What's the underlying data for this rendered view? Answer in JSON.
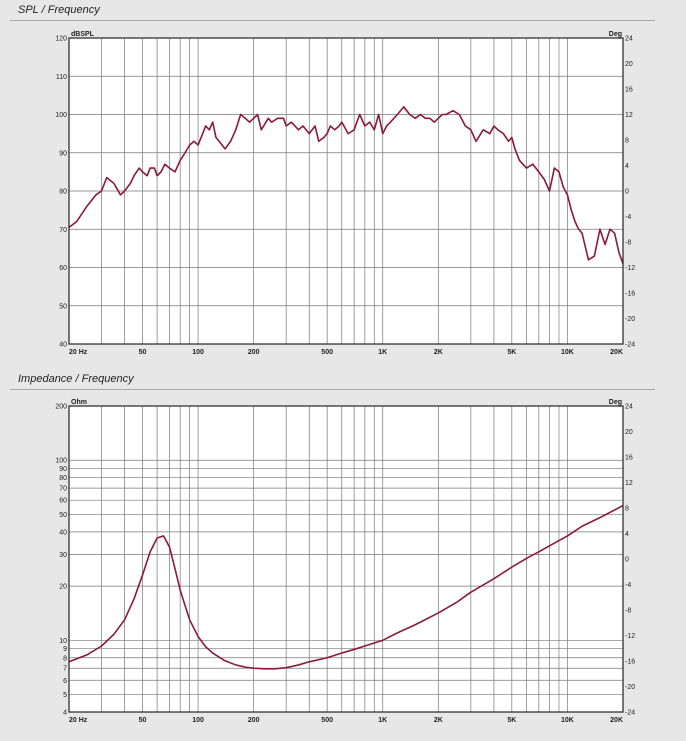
{
  "colors": {
    "background": "#e7e7e7",
    "plot_bg": "#ffffff",
    "grid": "#777777",
    "curve": "#8b1a3a",
    "highlight_tick": "#2a3fae"
  },
  "chart_data": [
    {
      "type": "line",
      "title": "SPL / Frequency",
      "ylabel": "dBSPL",
      "y2label": "Deg",
      "xscale": "log",
      "xlim": [
        20,
        20000
      ],
      "ylim": [
        40,
        120
      ],
      "y2lim": [
        -24,
        24
      ],
      "grid": true,
      "x_tick_labels": [
        {
          "v": 20,
          "t": "20 Hz"
        },
        {
          "v": 50,
          "t": "50"
        },
        {
          "v": 100,
          "t": "100"
        },
        {
          "v": 200,
          "t": "200"
        },
        {
          "v": 500,
          "t": "500"
        },
        {
          "v": 1000,
          "t": "1K"
        },
        {
          "v": 2000,
          "t": "2K"
        },
        {
          "v": 5000,
          "t": "5K"
        },
        {
          "v": 10000,
          "t": "10K"
        },
        {
          "v": 20000,
          "t": "20K"
        }
      ],
      "y_tick_labels": [
        {
          "v": 120,
          "t": "120"
        },
        {
          "v": 110,
          "t": "110"
        },
        {
          "v": 100,
          "t": "100"
        },
        {
          "v": 90,
          "t": "90"
        },
        {
          "v": 80,
          "t": "80"
        },
        {
          "v": 70,
          "t": "70"
        },
        {
          "v": 60,
          "t": "60"
        },
        {
          "v": 50,
          "t": "50"
        },
        {
          "v": 40,
          "t": "40"
        }
      ],
      "y2_tick_labels": [
        {
          "v": 24,
          "t": "24"
        },
        {
          "v": 20,
          "t": "20"
        },
        {
          "v": 16,
          "t": "16"
        },
        {
          "v": 12,
          "t": "12"
        },
        {
          "v": 8,
          "t": "8"
        },
        {
          "v": 4,
          "t": "4"
        },
        {
          "v": 0,
          "t": "0"
        },
        {
          "v": -4,
          "t": "-4"
        },
        {
          "v": -8,
          "t": "-8"
        },
        {
          "v": -12,
          "t": "-12"
        },
        {
          "v": -16,
          "t": "-16"
        },
        {
          "v": -20,
          "t": "-20"
        },
        {
          "v": -24,
          "t": "-24"
        }
      ],
      "series": [
        {
          "x": [
            20,
            22,
            25,
            28,
            30,
            32,
            35,
            38,
            40,
            43,
            45,
            48,
            50,
            53,
            55,
            58,
            60,
            63,
            66,
            70,
            75,
            80,
            85,
            90,
            95,
            100,
            110,
            115,
            120,
            125,
            130,
            140,
            150,
            160,
            170,
            180,
            190,
            200,
            210,
            220,
            240,
            250,
            270,
            290,
            300,
            320,
            350,
            370,
            400,
            430,
            450,
            480,
            500,
            520,
            550,
            580,
            600,
            650,
            700,
            750,
            800,
            850,
            900,
            950,
            1000,
            1050,
            1100,
            1200,
            1300,
            1400,
            1500,
            1600,
            1700,
            1800,
            1900,
            2000,
            2100,
            2200,
            2400,
            2600,
            2800,
            3000,
            3200,
            3500,
            3800,
            4000,
            4200,
            4500,
            4800,
            5000,
            5200,
            5500,
            6000,
            6500,
            7000,
            7500,
            8000,
            8500,
            9000,
            9500,
            10000,
            10500,
            11000,
            11500,
            12000,
            13000,
            14000,
            15000,
            16000,
            17000,
            18000,
            19000,
            20000
          ],
          "y": [
            70.5,
            72,
            76,
            79,
            80,
            83.5,
            82,
            79,
            80,
            82,
            84,
            86,
            85,
            84,
            86,
            86,
            84,
            85,
            87,
            86,
            85,
            88,
            90,
            92,
            93,
            92,
            97,
            96,
            98,
            94,
            93,
            91,
            93,
            96,
            100,
            99,
            98,
            99,
            100,
            96,
            99,
            98,
            99,
            99,
            97,
            98,
            96,
            97,
            95,
            97,
            93,
            94,
            95,
            97,
            96,
            97,
            98,
            95,
            96,
            100,
            97,
            98,
            96,
            100,
            95,
            97,
            98,
            100,
            102,
            100,
            99,
            100,
            99,
            99,
            98,
            99,
            100,
            100,
            101,
            100,
            97,
            96,
            93,
            96,
            95,
            97,
            96,
            95,
            93,
            94,
            91,
            88,
            86,
            87,
            85,
            83,
            80,
            86,
            85,
            81,
            79,
            75,
            72,
            70,
            69,
            62,
            63,
            70,
            66,
            70,
            69,
            64,
            61
          ]
        }
      ]
    },
    {
      "type": "line",
      "title": "Impedance / Frequency",
      "ylabel": "Ohm",
      "y2label": "Deg",
      "xscale": "log",
      "yscale": "log",
      "xlim": [
        20,
        20000
      ],
      "ylim": [
        4,
        200
      ],
      "y2lim": [
        -24,
        24
      ],
      "grid": true,
      "x_tick_labels": [
        {
          "v": 20,
          "t": "20 Hz"
        },
        {
          "v": 50,
          "t": "50"
        },
        {
          "v": 100,
          "t": "100"
        },
        {
          "v": 200,
          "t": "200"
        },
        {
          "v": 500,
          "t": "500"
        },
        {
          "v": 1000,
          "t": "1K"
        },
        {
          "v": 2000,
          "t": "2K"
        },
        {
          "v": 5000,
          "t": "5K"
        },
        {
          "v": 10000,
          "t": "10K"
        },
        {
          "v": 20000,
          "t": "20K"
        }
      ],
      "y_tick_labels": [
        {
          "v": 200,
          "t": "200"
        },
        {
          "v": 100,
          "t": "100"
        },
        {
          "v": 90,
          "t": "90"
        },
        {
          "v": 80,
          "t": "80"
        },
        {
          "v": 70,
          "t": "70"
        },
        {
          "v": 60,
          "t": "60"
        },
        {
          "v": 50,
          "t": "50"
        },
        {
          "v": 40,
          "t": "40"
        },
        {
          "v": 30,
          "t": "30"
        },
        {
          "v": 20,
          "t": "20"
        },
        {
          "v": 10,
          "t": "10"
        },
        {
          "v": 9,
          "t": "9"
        },
        {
          "v": 8,
          "t": "8"
        },
        {
          "v": 7,
          "t": "7"
        },
        {
          "v": 6,
          "t": "6"
        },
        {
          "v": 5,
          "t": "5"
        },
        {
          "v": 4,
          "t": "4"
        }
      ],
      "y2_tick_labels": [
        {
          "v": 24,
          "t": "24"
        },
        {
          "v": 20,
          "t": "20"
        },
        {
          "v": 16,
          "t": "16"
        },
        {
          "v": 12,
          "t": "12"
        },
        {
          "v": 8,
          "t": "8"
        },
        {
          "v": 4,
          "t": "4"
        },
        {
          "v": 0,
          "t": "0"
        },
        {
          "v": -4,
          "t": "-4"
        },
        {
          "v": -8,
          "t": "-8"
        },
        {
          "v": -12,
          "t": "-12"
        },
        {
          "v": -16,
          "t": "-16"
        },
        {
          "v": -20,
          "t": "-20"
        },
        {
          "v": -24,
          "t": "-24"
        }
      ],
      "series": [
        {
          "x": [
            20,
            25,
            30,
            35,
            40,
            45,
            50,
            55,
            60,
            65,
            70,
            75,
            80,
            90,
            100,
            110,
            120,
            140,
            160,
            180,
            200,
            230,
            260,
            300,
            350,
            400,
            500,
            600,
            700,
            800,
            1000,
            1200,
            1500,
            2000,
            2500,
            3000,
            4000,
            5000,
            6000,
            7000,
            8000,
            10000,
            12000,
            15000,
            20000
          ],
          "y": [
            7.6,
            8.3,
            9.3,
            10.8,
            13,
            17,
            23,
            31,
            37,
            38,
            33,
            25,
            19,
            13,
            10.5,
            9.2,
            8.5,
            7.7,
            7.3,
            7.1,
            7.0,
            6.95,
            6.95,
            7.05,
            7.3,
            7.6,
            8.0,
            8.5,
            8.9,
            9.3,
            10,
            11,
            12.2,
            14.2,
            16.2,
            18.5,
            22,
            25.5,
            28.5,
            31,
            33.5,
            38,
            43,
            48,
            56
          ]
        }
      ]
    }
  ]
}
